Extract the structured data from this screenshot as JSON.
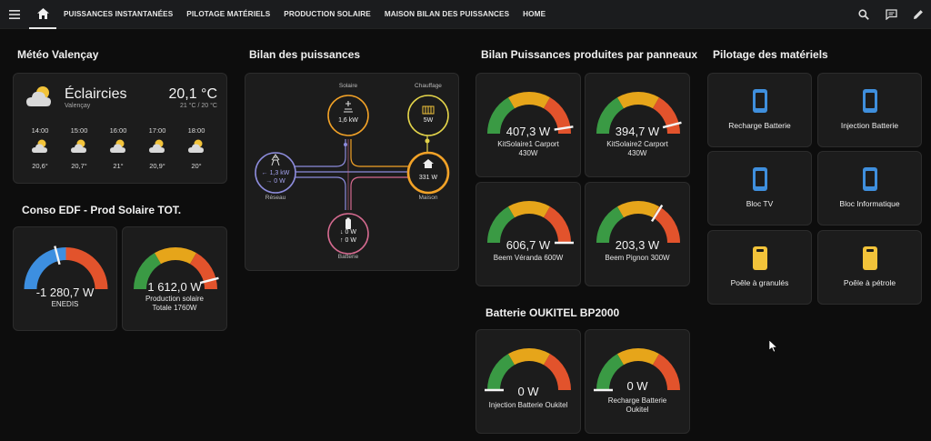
{
  "nav": {
    "tabs": [
      "PUISSANCES INSTANTANÉES",
      "PILOTAGE MATÉRIELS",
      "PRODUCTION SOLAIRE",
      "MAISON BILAN DES PUISSANCES",
      "HOME"
    ]
  },
  "sections": {
    "meteo": "Météo Valençay",
    "conso": "Conso EDF - Prod Solaire TOT.",
    "bilan": "Bilan des puissances",
    "panneaux": "Bilan Puissances produites par panneaux",
    "pilotage": "Pilotage des matériels",
    "batterie": "Batterie OUKITEL BP2000"
  },
  "weather": {
    "condition": "Éclaircies",
    "location": "Valençay",
    "temperature": "20,1 °C",
    "range": "21 °C / 20 °C",
    "forecast": [
      {
        "time": "14:00",
        "temp": "20,6°"
      },
      {
        "time": "15:00",
        "temp": "20,7°"
      },
      {
        "time": "16:00",
        "temp": "21°"
      },
      {
        "time": "17:00",
        "temp": "20,9°"
      },
      {
        "time": "18:00",
        "temp": "20°"
      }
    ]
  },
  "energy_flow": {
    "solar": {
      "label": "Solaire",
      "value": "1,6 kW"
    },
    "heating": {
      "label": "Chauffage",
      "value": "5W"
    },
    "grid": {
      "label": "Réseau",
      "import": "← 1,3 kW",
      "export": "→ 0 W"
    },
    "home": {
      "label": "Maison",
      "value": "331 W"
    },
    "battery": {
      "label": "Batterie",
      "in": "↓ 0 W",
      "out": "↑ 0 W"
    }
  },
  "gauges": {
    "enedis": {
      "value": "-1 280,7 W",
      "label": "ENEDIS",
      "level": 0.42
    },
    "prod_totale": {
      "value": "1 612,0 W",
      "label1": "Production solaire",
      "label2": "Totale 1760W",
      "level": 0.92
    },
    "kit1": {
      "value": "407,3 W",
      "label1": "KitSolaire1 Carport",
      "label2": "430W",
      "level": 0.95
    },
    "kit2": {
      "value": "394,7 W",
      "label1": "KitSolaire2 Carport",
      "label2": "430W",
      "level": 0.92
    },
    "veranda": {
      "value": "606,7 W",
      "label1": "Beem Véranda 600W",
      "level": 1.0
    },
    "pignon": {
      "value": "203,3 W",
      "label1": "Beem Pignon 300W",
      "level": 0.68
    },
    "inj_batt": {
      "value": "0 W",
      "label1": "Injection Batterie Oukitel",
      "level": 0.0
    },
    "rech_batt": {
      "value": "0 W",
      "label1": "Recharge Batterie",
      "label2": "Oukitel",
      "level": 0.0
    }
  },
  "pilotage": [
    {
      "label": "Recharge Batterie",
      "icon": "phone-icon"
    },
    {
      "label": "Injection Batterie",
      "icon": "phone-icon"
    },
    {
      "label": "Bloc TV",
      "icon": "phone-icon"
    },
    {
      "label": "Bloc Informatique",
      "icon": "phone-icon"
    },
    {
      "label": "Poêle à granulés",
      "icon": "fuel-can-icon"
    },
    {
      "label": "Poêle à pétrole",
      "icon": "fuel-can-icon"
    }
  ],
  "colors": {
    "green": "#3a9a44",
    "yellow": "#e6a51a",
    "red": "#e2532c",
    "blue": "#3d8fe0",
    "solar": "#f2a227",
    "grid": "#8d8cdc",
    "battery": "#d46a8f",
    "heating": "#e3d44a",
    "icon_blue": "#3f8fdd",
    "icon_yellow": "#f2c33a"
  }
}
